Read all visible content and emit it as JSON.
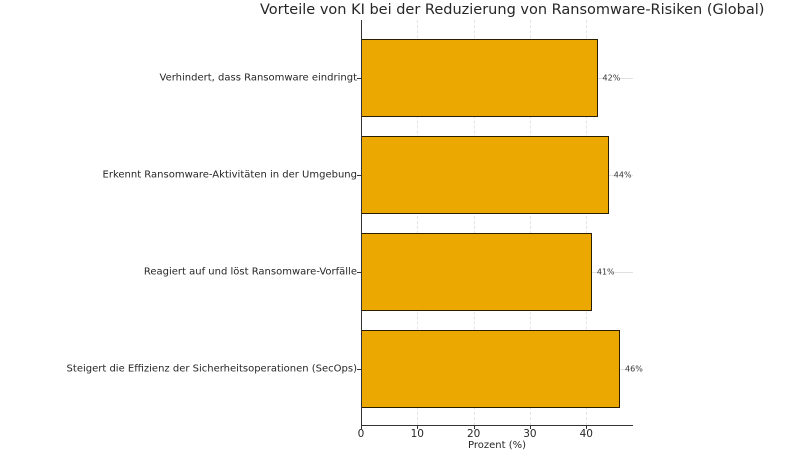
{
  "chart_data": {
    "type": "bar",
    "orientation": "horizontal",
    "title": "Vorteile von KI bei der Reduzierung von Ransomware-Risiken (Global)",
    "xlabel": "Prozent (%)",
    "ylabel": "",
    "categories": [
      "Verhindert, dass Ransomware eindringt",
      "Erkennt Ransomware-Aktivitäten in der Umgebung",
      "Reagiert auf und löst Ransomware-Vorfälle",
      "Steigert die Effizienz der Sicherheitsoperationen (SecOps)"
    ],
    "values": [
      42,
      44,
      41,
      46
    ],
    "value_labels": [
      "42%",
      "44%",
      "41%",
      "46%"
    ],
    "xlim": [
      0,
      48.3
    ],
    "xticks": [
      0,
      10,
      20,
      30,
      40
    ],
    "xtick_labels": [
      "0",
      "10",
      "20",
      "30",
      "40"
    ],
    "grid": true,
    "bar_color": "#EBA800",
    "bar_edge_color": "#2a1d00",
    "legend": null
  }
}
